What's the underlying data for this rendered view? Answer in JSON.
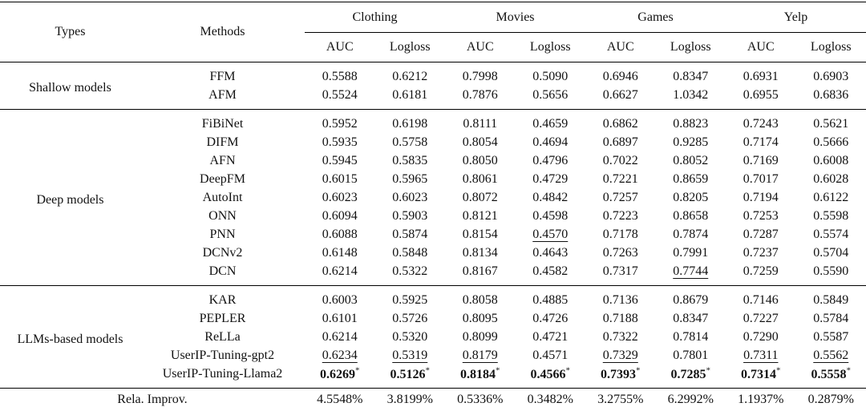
{
  "header": {
    "types": "Types",
    "methods": "Methods",
    "datasets": [
      "Clothing",
      "Movies",
      "Games",
      "Yelp"
    ],
    "metrics": [
      "AUC",
      "Logloss",
      "AUC",
      "Logloss",
      "AUC",
      "Logloss",
      "AUC",
      "Logloss"
    ]
  },
  "groups": [
    {
      "label": "Shallow models",
      "rows": [
        {
          "method": "FFM",
          "cells": [
            "0.5588",
            "0.6212",
            "0.7998",
            "0.5090",
            "0.6946",
            "0.8347",
            "0.6931",
            "0.6903"
          ]
        },
        {
          "method": "AFM",
          "cells": [
            "0.5524",
            "0.6181",
            "0.7876",
            "0.5656",
            "0.6627",
            "1.0342",
            "0.6955",
            "0.6836"
          ]
        }
      ]
    },
    {
      "label": "Deep models",
      "rows": [
        {
          "method": "FiBiNet",
          "cells": [
            "0.5952",
            "0.6198",
            "0.8111",
            "0.4659",
            "0.6862",
            "0.8823",
            "0.7243",
            "0.5621"
          ]
        },
        {
          "method": "DIFM",
          "cells": [
            "0.5935",
            "0.5758",
            "0.8054",
            "0.4694",
            "0.6897",
            "0.9285",
            "0.7174",
            "0.5666"
          ]
        },
        {
          "method": "AFN",
          "cells": [
            "0.5945",
            "0.5835",
            "0.8050",
            "0.4796",
            "0.7022",
            "0.8052",
            "0.7169",
            "0.6008"
          ]
        },
        {
          "method": "DeepFM",
          "cells": [
            "0.6015",
            "0.5965",
            "0.8061",
            "0.4729",
            "0.7221",
            "0.8659",
            "0.7017",
            "0.6028"
          ]
        },
        {
          "method": "AutoInt",
          "cells": [
            "0.6023",
            "0.6023",
            "0.8072",
            "0.4842",
            "0.7257",
            "0.8205",
            "0.7194",
            "0.6122"
          ]
        },
        {
          "method": "ONN",
          "cells": [
            "0.6094",
            "0.5903",
            "0.8121",
            "0.4598",
            "0.7223",
            "0.8658",
            "0.7253",
            "0.5598"
          ]
        },
        {
          "method": "PNN",
          "cells": [
            "0.6088",
            "0.5874",
            "0.8154",
            {
              "text": "0.4570",
              "underline": true
            },
            "0.7178",
            "0.7874",
            "0.7287",
            "0.5574"
          ]
        },
        {
          "method": "DCNv2",
          "cells": [
            "0.6148",
            "0.5848",
            "0.8134",
            "0.4643",
            "0.7263",
            "0.7991",
            "0.7237",
            "0.5704"
          ]
        },
        {
          "method": "DCN",
          "cells": [
            "0.6214",
            "0.5322",
            "0.8167",
            "0.4582",
            "0.7317",
            {
              "text": "0.7744",
              "underline": true
            },
            "0.7259",
            "0.5590"
          ]
        }
      ]
    },
    {
      "label": "LLMs-based models",
      "rows": [
        {
          "method": "KAR",
          "cells": [
            "0.6003",
            "0.5925",
            "0.8058",
            "0.4885",
            "0.7136",
            "0.8679",
            "0.7146",
            "0.5849"
          ]
        },
        {
          "method": "PEPLER",
          "cells": [
            "0.6101",
            "0.5726",
            "0.8095",
            "0.4726",
            "0.7188",
            "0.8347",
            "0.7227",
            "0.5784"
          ]
        },
        {
          "method": "ReLLa",
          "cells": [
            "0.6214",
            "0.5320",
            "0.8099",
            "0.4721",
            "0.7322",
            "0.7814",
            "0.7290",
            "0.5587"
          ]
        },
        {
          "method": "UserIP-Tuning-gpt2",
          "cells": [
            {
              "text": "0.6234",
              "underline": true
            },
            {
              "text": "0.5319",
              "underline": true
            },
            {
              "text": "0.8179",
              "underline": true
            },
            "0.4571",
            {
              "text": "0.7329",
              "underline": true
            },
            "0.7801",
            {
              "text": "0.7311",
              "underline": true
            },
            {
              "text": "0.5562",
              "underline": true
            }
          ]
        },
        {
          "method": "UserIP-Tuning-Llama2",
          "cells": [
            {
              "text": "0.6269",
              "sup": "*",
              "bold": true
            },
            {
              "text": "0.5126",
              "sup": "*",
              "bold": true
            },
            {
              "text": "0.8184",
              "sup": "*",
              "bold": true
            },
            {
              "text": "0.4566",
              "sup": "*",
              "bold": true
            },
            {
              "text": "0.7393",
              "sup": "*",
              "bold": true
            },
            {
              "text": "0.7285",
              "sup": "*",
              "bold": true
            },
            {
              "text": "0.7314",
              "sup": "*",
              "bold": true
            },
            {
              "text": "0.5558",
              "sup": "*",
              "bold": true
            }
          ]
        }
      ]
    }
  ],
  "footer": {
    "label": "Rela. Improv.",
    "cells": [
      "4.5548%",
      "3.8199%",
      "0.5336%",
      "0.3482%",
      "3.2755%",
      "6.2992%",
      "1.1937%",
      "0.2879%"
    ]
  }
}
